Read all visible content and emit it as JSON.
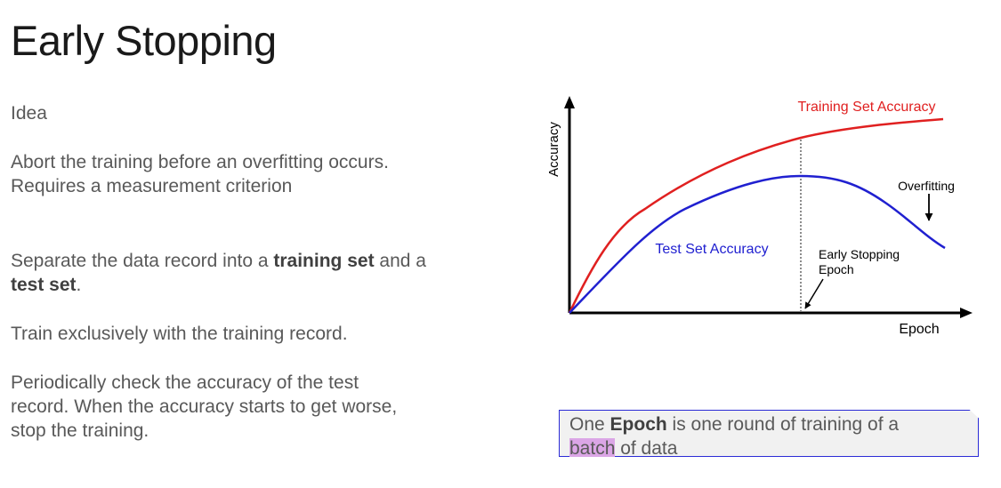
{
  "slide": {
    "title": "Early Stopping",
    "idea": "Idea",
    "abort_line1": "Abort the training before an overfitting occurs.",
    "abort_line2": "Requires a measurement criterion",
    "separate": {
      "t1": "Separate the data record into a ",
      "b1": "training set",
      "t2": " and a",
      "b2": "test set",
      "t3": "."
    },
    "train": "Train exclusively with the training record.",
    "periodic_line1": "Periodically check the accuracy of the test",
    "periodic_line2": "record. When the accuracy starts to get worse,",
    "periodic_line3": "stop the training."
  },
  "note": {
    "t1": "One ",
    "b1": "Epoch",
    "t2": " is one round of training of a",
    "highlight": "batch",
    "t3": " of data",
    "highlight_color": "#dba6e6",
    "border_color": "#2b2bd6"
  },
  "diagram": {
    "y_axis_label": "Accuracy",
    "x_axis_label": "Epoch",
    "training_label": "Training Set Accuracy",
    "test_label": "Test Set Accuracy",
    "overfitting_label": "Overfitting",
    "early_stop_line1": "Early Stopping",
    "early_stop_line2": "Epoch",
    "training_color": "#e02020",
    "test_color": "#2020d0"
  }
}
